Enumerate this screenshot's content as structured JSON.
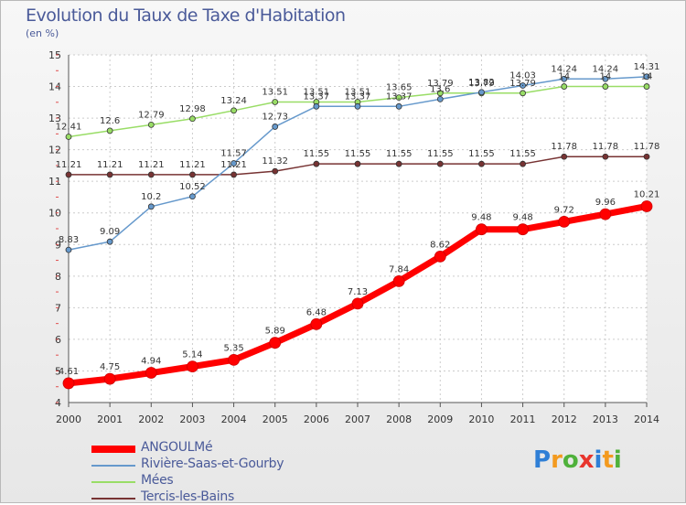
{
  "chart_data": {
    "type": "line",
    "title": "Evolution du Taux de Taxe d'Habitation",
    "subtitle": "(en %)",
    "x": [
      2000,
      2001,
      2002,
      2003,
      2004,
      2005,
      2006,
      2007,
      2008,
      2009,
      2010,
      2011,
      2012,
      2013,
      2014
    ],
    "ylim": [
      4,
      15
    ],
    "yticks": [
      4,
      5,
      6,
      7,
      8,
      9,
      10,
      11,
      12,
      13,
      14,
      15
    ],
    "grid": true,
    "legend_position": "bottom-left",
    "series": [
      {
        "name": "ANGOULMé",
        "color": "#ff0000",
        "values": [
          4.61,
          4.75,
          4.94,
          5.14,
          5.35,
          5.89,
          6.48,
          7.13,
          7.84,
          8.62,
          9.48,
          9.48,
          9.72,
          9.96,
          10.21
        ]
      },
      {
        "name": "Rivière-Saas-et-Gourby",
        "color": "#6699cc",
        "values": [
          8.83,
          9.09,
          10.2,
          10.52,
          11.57,
          12.73,
          13.37,
          13.37,
          13.37,
          13.6,
          13.82,
          14.03,
          14.24,
          14.24,
          14.31
        ]
      },
      {
        "name": "Mées",
        "color": "#99dd66",
        "values": [
          12.41,
          12.6,
          12.79,
          12.98,
          13.24,
          13.51,
          13.51,
          13.51,
          13.65,
          13.79,
          13.79,
          13.79,
          14,
          14,
          14
        ]
      },
      {
        "name": "Tercis-les-Bains",
        "color": "#773333",
        "values": [
          11.21,
          11.21,
          11.21,
          11.21,
          11.21,
          11.32,
          11.55,
          11.55,
          11.55,
          11.55,
          11.55,
          11.55,
          11.78,
          11.78,
          11.78
        ]
      }
    ]
  },
  "brand": {
    "text": "Proxiti",
    "letters": [
      "P",
      "r",
      "o",
      "x",
      "i",
      "t",
      "i"
    ],
    "colors": [
      "#2f7fd6",
      "#f39a1f",
      "#4fb13b",
      "#e8352d",
      "#2f7fd6",
      "#f39a1f",
      "#4fb13b"
    ]
  }
}
